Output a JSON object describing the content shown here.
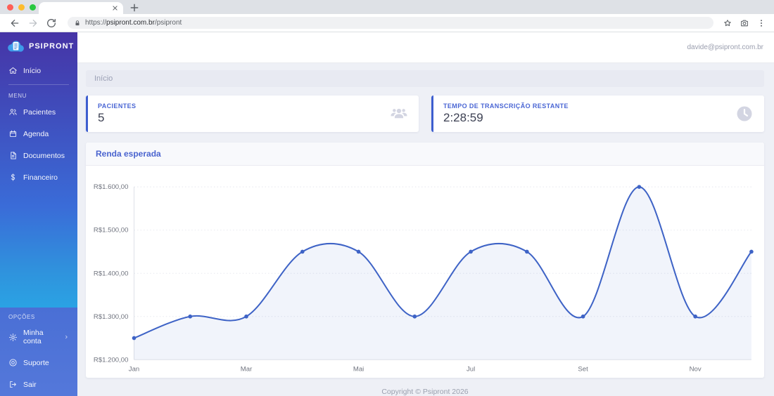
{
  "browser": {
    "tab_title": "",
    "url_scheme": "https://",
    "url_domain": "psipront.com.br",
    "url_path": "/psipront"
  },
  "sidebar": {
    "brand": "PSIPRONT",
    "brand_icon": "cloud-document-icon",
    "top_items": [
      {
        "id": "inicio",
        "label": "Início",
        "icon": "home-icon"
      }
    ],
    "menu_header": "MENU",
    "menu_items": [
      {
        "id": "pacientes",
        "label": "Pacientes",
        "icon": "users-icon"
      },
      {
        "id": "agenda",
        "label": "Agenda",
        "icon": "calendar-icon"
      },
      {
        "id": "documentos",
        "label": "Documentos",
        "icon": "document-icon"
      },
      {
        "id": "financeiro",
        "label": "Financeiro",
        "icon": "dollar-icon"
      }
    ],
    "options_header": "OPÇÕES",
    "option_items": [
      {
        "id": "minha-conta",
        "label": "Minha conta",
        "icon": "gear-icon",
        "chevron": true
      },
      {
        "id": "suporte",
        "label": "Suporte",
        "icon": "support-icon"
      },
      {
        "id": "sair",
        "label": "Sair",
        "icon": "logout-icon"
      }
    ]
  },
  "header": {
    "user_email": "davide@psipront.com.br"
  },
  "breadcrumb": {
    "label": "Início"
  },
  "cards": [
    {
      "label": "PACIENTES",
      "value": "5",
      "icon": "users-group-icon"
    },
    {
      "label": "TEMPO DE TRANSCRIÇÃO RESTANTE",
      "value": "2:28:59",
      "icon": "clock-icon"
    }
  ],
  "chart_card": {
    "title": "Renda esperada"
  },
  "chart_data": {
    "type": "line",
    "title": "Renda esperada",
    "points_count": 12,
    "values": [
      1250,
      1300,
      1300,
      1450,
      1450,
      1300,
      1450,
      1450,
      1300,
      1600,
      1300,
      1450
    ],
    "x_visible_ticks": [
      {
        "index": 0,
        "label": "Jan"
      },
      {
        "index": 2,
        "label": "Mar"
      },
      {
        "index": 4,
        "label": "Mai"
      },
      {
        "index": 6,
        "label": "Jul"
      },
      {
        "index": 8,
        "label": "Set"
      },
      {
        "index": 10,
        "label": "Nov"
      }
    ],
    "y_ticks": [
      {
        "value": 1600,
        "label": "R$1.600,00"
      },
      {
        "value": 1500,
        "label": "R$1.500,00"
      },
      {
        "value": 1400,
        "label": "R$1.400,00"
      },
      {
        "value": 1300,
        "label": "R$1.300,00"
      },
      {
        "value": 1200,
        "label": "R$1.200,00"
      }
    ],
    "ylim": [
      1200,
      1600
    ],
    "grid": "dotted-horizontal",
    "legend": "none",
    "smooth": true,
    "markers": true,
    "area_fill": true,
    "line_color": "#3e63c6",
    "area_color": "rgba(62,99,198,0.07)"
  },
  "footer": {
    "copyright": "Copyright © Psipront 2026"
  },
  "colors": {
    "accent_blue": "#3d5ecf",
    "sidebar_top": "#4634a6",
    "sidebar_mid": "#3a6cd8",
    "sidebar_cyan": "#2aa3e4",
    "sidebar_bottom": "#4a6fd5",
    "content_bg": "#eef0f6"
  }
}
